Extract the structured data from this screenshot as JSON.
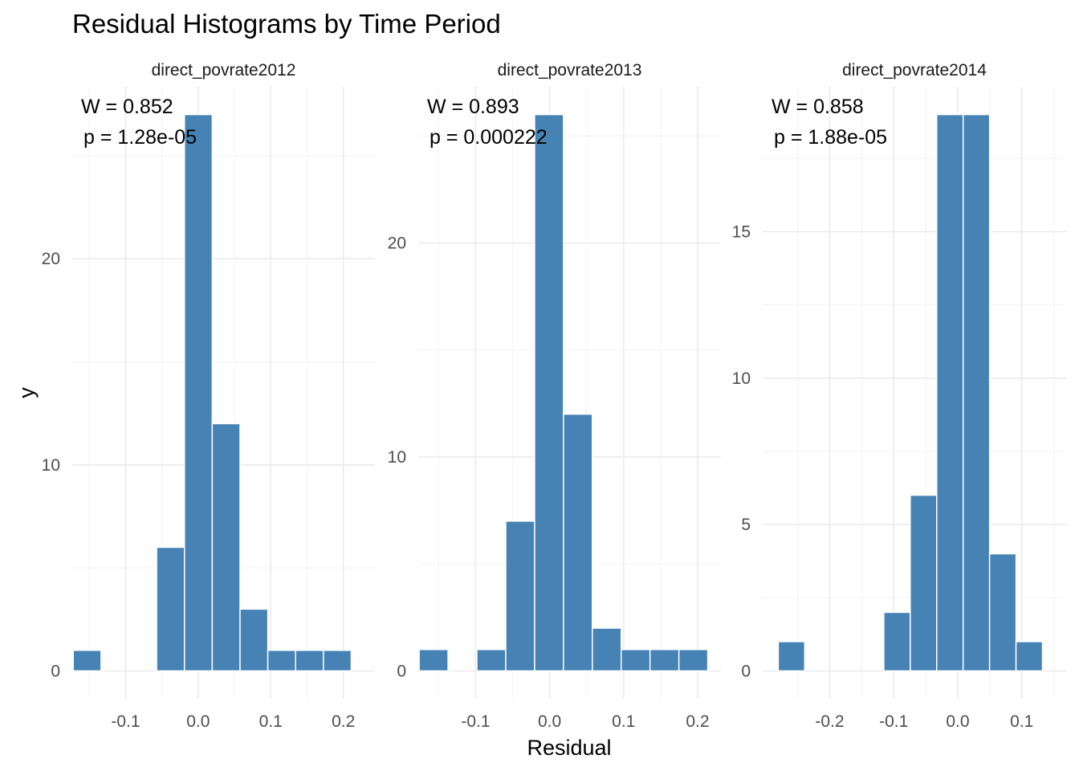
{
  "chart_data": {
    "type": "bar",
    "title": "Residual Histograms by Time Period",
    "xlabel": "Residual",
    "ylabel": "y",
    "bar_color": "#4682B4",
    "grid": true,
    "panels": [
      {
        "strip": "direct_povrate2012",
        "annotation_w": "W = 0.852",
        "annotation_p": "p = 1.28e-05",
        "xlim": [
          -0.1735,
          0.2435
        ],
        "ylim": [
          -1.35,
          28.35
        ],
        "x_ticks": [
          -0.1,
          0.0,
          0.1,
          0.2
        ],
        "x_tick_labels": [
          "-0.1",
          "0.0",
          "0.1",
          "0.2"
        ],
        "y_ticks": [
          0,
          10,
          20
        ],
        "y_tick_labels": [
          "0",
          "10",
          "20"
        ],
        "bin_width": 0.0383,
        "bins": [
          {
            "center": -0.153,
            "count": 1
          },
          {
            "center": -0.0381,
            "count": 6
          },
          {
            "center": 0.0002,
            "count": 27
          },
          {
            "center": 0.0385,
            "count": 12
          },
          {
            "center": 0.0768,
            "count": 3
          },
          {
            "center": 0.1151,
            "count": 1
          },
          {
            "center": 0.1534,
            "count": 1
          },
          {
            "center": 0.1917,
            "count": 1
          }
        ]
      },
      {
        "strip": "direct_povrate2013",
        "annotation_w": "W = 0.893",
        "annotation_p": "p = 0.000222",
        "xlim": [
          -0.1775,
          0.2315
        ],
        "ylim": [
          -1.3,
          27.3
        ],
        "x_ticks": [
          -0.1,
          0.0,
          0.1,
          0.2
        ],
        "x_tick_labels": [
          "-0.1",
          "0.0",
          "0.1",
          "0.2"
        ],
        "y_ticks": [
          0,
          10,
          20
        ],
        "y_tick_labels": [
          "0",
          "10",
          "20"
        ],
        "bin_width": 0.039,
        "bins": [
          {
            "center": -0.1568,
            "count": 1
          },
          {
            "center": -0.0788,
            "count": 1
          },
          {
            "center": -0.0398,
            "count": 7
          },
          {
            "center": -0.0008,
            "count": 26
          },
          {
            "center": 0.0382,
            "count": 12
          },
          {
            "center": 0.0772,
            "count": 2
          },
          {
            "center": 0.1162,
            "count": 1
          },
          {
            "center": 0.1552,
            "count": 1
          },
          {
            "center": 0.1942,
            "count": 1
          }
        ]
      },
      {
        "strip": "direct_povrate2014",
        "annotation_w": "W = 0.858",
        "annotation_p": "p = 1.88e-05",
        "xlim": [
          -0.3046,
          0.1693
        ],
        "ylim": [
          -0.95,
          19.95
        ],
        "x_ticks": [
          -0.2,
          -0.1,
          0.0,
          0.1
        ],
        "x_tick_labels": [
          "-0.2",
          "-0.1",
          "0.0",
          "0.1"
        ],
        "y_ticks": [
          0,
          5,
          10,
          15
        ],
        "y_tick_labels": [
          "0",
          "5",
          "10",
          "15"
        ],
        "bin_width": 0.0413,
        "bins": [
          {
            "center": -0.2596,
            "count": 1
          },
          {
            "center": -0.0948,
            "count": 2
          },
          {
            "center": -0.0535,
            "count": 6
          },
          {
            "center": -0.0122,
            "count": 19
          },
          {
            "center": 0.0291,
            "count": 19
          },
          {
            "center": 0.0704,
            "count": 4
          },
          {
            "center": 0.1117,
            "count": 1
          }
        ]
      }
    ]
  }
}
